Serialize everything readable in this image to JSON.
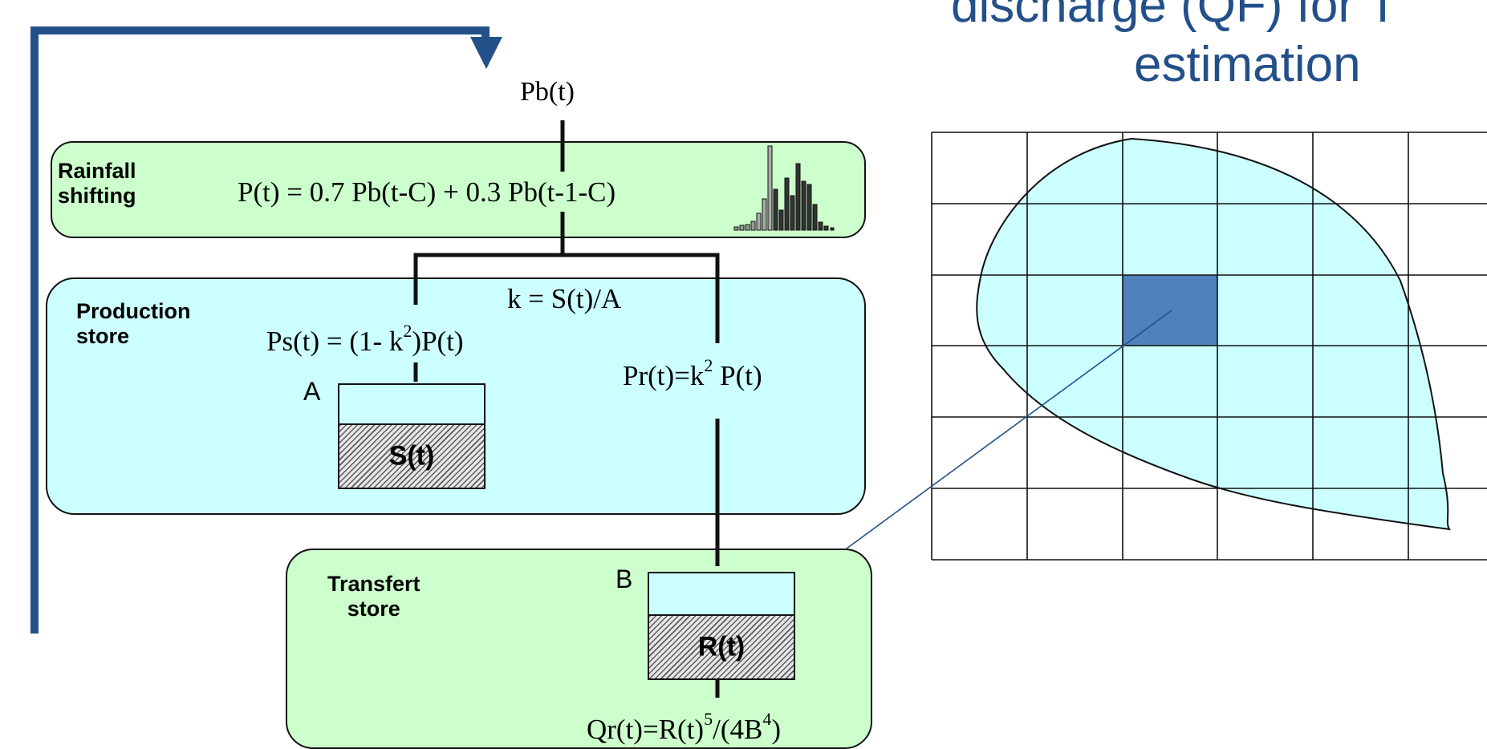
{
  "title": {
    "line1": "discharge (QF) for T",
    "line2": "estimation"
  },
  "input": {
    "label": "Pb(t)"
  },
  "rainfall": {
    "label": "Rainfall\nshifting",
    "equation": "P(t) = 0.7 Pb(t-C) + 0.3 Pb(t-1-C)"
  },
  "production": {
    "label": "Production\nstore",
    "k_equation": "k = S(t)/A",
    "ps_main": "Ps(t) = (1- k",
    "ps_exp": "2",
    "ps_tail": ")P(t)",
    "pr_main": "Pr(t)=k",
    "pr_exp": "2",
    "pr_tail": " P(t)",
    "capacity_letter": "A",
    "store_variable": "S(t)"
  },
  "transfer": {
    "label": "Transfert\nstore",
    "capacity_letter": "B",
    "store_variable": "R(t)",
    "q_main": "Qr(t)=R(t)",
    "q_exp1": "5",
    "q_mid": "/(4B",
    "q_exp2": "4",
    "q_tail": ")"
  },
  "colors": {
    "title": "#24508a",
    "feedback_arrow": "#24508a",
    "green_panel": "#ccffcc",
    "cyan_panel": "#ccffff",
    "selected_cell": "#4f81bd",
    "catchment_fill": "#ccffff"
  }
}
